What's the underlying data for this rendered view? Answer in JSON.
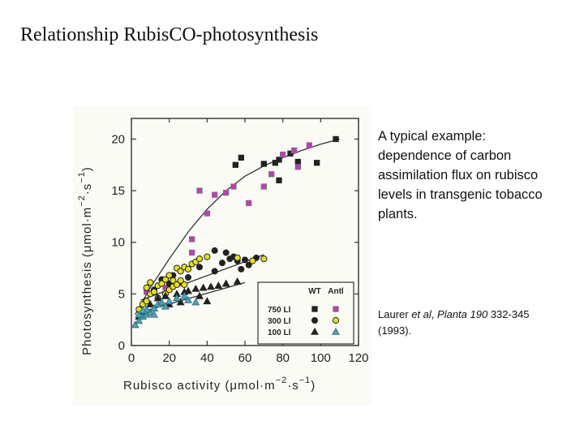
{
  "title": "Relationship RubisCO-photosynthesis",
  "description": "A typical example: dependence of carbon assimilation flux on rubisco levels in transgenic tobacco plants.",
  "citation": {
    "author": "Laurer",
    "etal": "et al",
    "comma": ",",
    "journal": "Planta 190",
    "pages": "332-345 (1993)."
  },
  "chart_data": {
    "type": "scatter",
    "xlabel": "Rubisco activity",
    "xunit_prefix": "(μmol·m",
    "xunit_exp1": "−2",
    "xunit_mid": "·s",
    "xunit_exp2": "−1",
    "xunit_suffix": ")",
    "ylabel": "Photosynthesis",
    "yunit_prefix": "(μmol·m",
    "yunit_exp1": "−2",
    "yunit_mid": "·s",
    "yunit_exp2": "−1",
    "yunit_suffix": ")",
    "xlim": [
      0,
      120
    ],
    "ylim": [
      0,
      22
    ],
    "x_ticks": [
      0,
      20,
      40,
      60,
      80,
      100,
      120
    ],
    "y_ticks": [
      0,
      5,
      10,
      15,
      20
    ],
    "legend": {
      "position": "bottom-right",
      "header_wt": "WT",
      "header_antl": "Antl",
      "rows": [
        {
          "label": "750 Ll",
          "marker": "square"
        },
        {
          "label": "300 Ll",
          "marker": "circle"
        },
        {
          "label": "100 Ll",
          "marker": "triangle"
        }
      ]
    },
    "colors": {
      "wt": "#222222",
      "antl_750": "#c23bbf",
      "antl_300": "#e6e01e",
      "antl_100": "#4fa3b8"
    },
    "series": [
      {
        "name": "750 Ll WT",
        "marker": "square",
        "group": "wt",
        "points": [
          [
            55,
            17.5
          ],
          [
            58,
            18.2
          ],
          [
            70,
            17.6
          ],
          [
            76,
            17.7
          ],
          [
            78,
            18.0
          ],
          [
            78,
            16.0
          ],
          [
            88,
            17.8
          ],
          [
            98,
            17.7
          ],
          [
            108,
            20.0
          ],
          [
            84,
            18.6
          ]
        ]
      },
      {
        "name": "750 Ll Antl",
        "marker": "square",
        "group": "antl_750",
        "points": [
          [
            36,
            15.0
          ],
          [
            44,
            14.6
          ],
          [
            50,
            14.8
          ],
          [
            54,
            15.4
          ],
          [
            62,
            13.8
          ],
          [
            40,
            12.8
          ],
          [
            32,
            10.3
          ],
          [
            32,
            9.0
          ],
          [
            18,
            5.6
          ],
          [
            8,
            5.2
          ],
          [
            70,
            15.4
          ],
          [
            74,
            16.6
          ],
          [
            80,
            18.5
          ],
          [
            86,
            18.9
          ],
          [
            94,
            19.4
          ],
          [
            88,
            17.3
          ]
        ]
      },
      {
        "name": "300 Ll WT",
        "marker": "circle",
        "group": "wt",
        "points": [
          [
            44,
            9.2
          ],
          [
            50,
            9.0
          ],
          [
            54,
            8.6
          ],
          [
            56,
            8.2
          ],
          [
            60,
            8.3
          ],
          [
            66,
            8.5
          ],
          [
            62,
            7.8
          ],
          [
            48,
            8.0
          ],
          [
            52,
            8.4
          ],
          [
            36,
            7.6
          ],
          [
            44,
            7.2
          ],
          [
            58,
            7.4
          ],
          [
            30,
            6.6
          ],
          [
            26,
            6.2
          ],
          [
            20,
            6.0
          ],
          [
            16,
            6.4
          ],
          [
            22,
            6.8
          ],
          [
            12,
            5.4
          ]
        ]
      },
      {
        "name": "300 Ll Antl",
        "marker": "circle",
        "group": "antl_300",
        "points": [
          [
            4,
            3.5
          ],
          [
            6,
            4.0
          ],
          [
            8,
            4.3
          ],
          [
            10,
            5.0
          ],
          [
            12,
            5.2
          ],
          [
            14,
            5.8
          ],
          [
            16,
            6.0
          ],
          [
            18,
            6.4
          ],
          [
            20,
            6.8
          ],
          [
            22,
            6.3
          ],
          [
            24,
            7.5
          ],
          [
            26,
            7.2
          ],
          [
            28,
            7.6
          ],
          [
            30,
            7.4
          ],
          [
            32,
            7.9
          ],
          [
            34,
            8.1
          ],
          [
            36,
            8.4
          ],
          [
            40,
            8.6
          ],
          [
            14,
            4.6
          ],
          [
            18,
            5.0
          ],
          [
            20,
            5.4
          ],
          [
            22,
            5.7
          ],
          [
            24,
            5.9
          ],
          [
            26,
            6.3
          ],
          [
            28,
            5.9
          ],
          [
            10,
            6.1
          ],
          [
            8,
            5.6
          ],
          [
            56,
            8.5
          ],
          [
            64,
            8.2
          ],
          [
            70,
            8.4
          ]
        ]
      },
      {
        "name": "100 Ll WT",
        "marker": "triangle",
        "group": "wt",
        "points": [
          [
            4,
            2.8
          ],
          [
            6,
            3.2
          ],
          [
            8,
            3.5
          ],
          [
            10,
            4.0
          ],
          [
            14,
            4.6
          ],
          [
            18,
            4.8
          ],
          [
            24,
            5.0
          ],
          [
            28,
            5.2
          ],
          [
            30,
            5.3
          ],
          [
            34,
            5.5
          ],
          [
            38,
            5.6
          ],
          [
            42,
            5.7
          ],
          [
            46,
            5.8
          ],
          [
            50,
            6.0
          ],
          [
            56,
            6.2
          ],
          [
            36,
            4.8
          ],
          [
            26,
            4.2
          ],
          [
            20,
            4.0
          ],
          [
            12,
            3.6
          ],
          [
            40,
            4.3
          ]
        ]
      },
      {
        "name": "100 Ll Antl",
        "marker": "triangle",
        "group": "antl_100",
        "points": [
          [
            2,
            2.0
          ],
          [
            4,
            2.4
          ],
          [
            6,
            2.8
          ],
          [
            8,
            3.0
          ],
          [
            10,
            3.2
          ],
          [
            12,
            3.6
          ],
          [
            14,
            4.0
          ],
          [
            16,
            4.2
          ],
          [
            20,
            4.3
          ],
          [
            24,
            4.6
          ],
          [
            28,
            4.8
          ],
          [
            30,
            4.4
          ],
          [
            34,
            4.2
          ],
          [
            4,
            3.0
          ],
          [
            8,
            3.5
          ],
          [
            18,
            3.8
          ],
          [
            12,
            3.0
          ],
          [
            6,
            3.4
          ]
        ]
      }
    ],
    "fit_lines": [
      {
        "name": "750 Ll trend",
        "points": [
          [
            2,
            3.0
          ],
          [
            10,
            5.6
          ],
          [
            20,
            8.4
          ],
          [
            30,
            11.0
          ],
          [
            40,
            13.2
          ],
          [
            50,
            15.0
          ],
          [
            60,
            16.4
          ],
          [
            70,
            17.4
          ],
          [
            80,
            18.2
          ],
          [
            90,
            18.9
          ],
          [
            100,
            19.5
          ],
          [
            110,
            20.0
          ]
        ]
      },
      {
        "name": "300 Ll trend",
        "points": [
          [
            5,
            4.4
          ],
          [
            70,
            8.8
          ]
        ]
      },
      {
        "name": "100 Ll trend",
        "points": [
          [
            4,
            3.2
          ],
          [
            60,
            6.1
          ]
        ]
      }
    ]
  }
}
